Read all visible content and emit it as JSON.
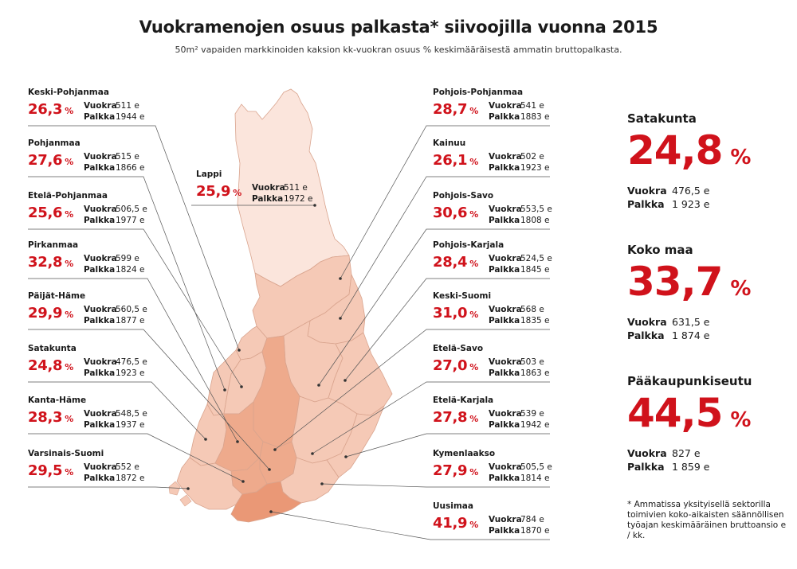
{
  "title": "Vuokramenojen osuus palkasta* siivoojilla vuonna 2015",
  "subtitle": "50m² vapaiden markkinoiden kaksion kk-vuokran osuus % keskimääräisestä ammatin bruttopalkasta.",
  "labels": {
    "rent": "Vuokra",
    "pay": "Palkka",
    "percent_unit": "%",
    "rent_big": "Vuokra",
    "pay_big": "Palkka"
  },
  "left_regions": [
    {
      "name": "Keski-Pohjanmaa",
      "percent": "26,3",
      "rent": "511 e",
      "pay": "1944 e"
    },
    {
      "name": "Pohjanmaa",
      "percent": "27,6",
      "rent": "515 e",
      "pay": "1866 e"
    },
    {
      "name": "Etelä-Pohjanmaa",
      "percent": "25,6",
      "rent": "506,5 e",
      "pay": "1977 e"
    },
    {
      "name": "Pirkanmaa",
      "percent": "32,8",
      "rent": "599 e",
      "pay": "1824 e"
    },
    {
      "name": "Päijät-Häme",
      "percent": "29,9",
      "rent": "560,5 e",
      "pay": "1877 e"
    },
    {
      "name": "Satakunta",
      "percent": "24,8",
      "rent": "476,5 e",
      "pay": "1923 e"
    },
    {
      "name": "Kanta-Häme",
      "percent": "28,3",
      "rent": "548,5 e",
      "pay": "1937 e"
    },
    {
      "name": "Varsinais-Suomi",
      "percent": "29,5",
      "rent": "552 e",
      "pay": "1872 e"
    }
  ],
  "lappi": {
    "name": "Lappi",
    "percent": "25,9",
    "rent": "511 e",
    "pay": "1972 e"
  },
  "right_regions": [
    {
      "name": "Pohjois-Pohjanmaa",
      "percent": "28,7",
      "rent": "541 e",
      "pay": "1883 e"
    },
    {
      "name": "Kainuu",
      "percent": "26,1",
      "rent": "502 e",
      "pay": "1923 e"
    },
    {
      "name": "Pohjois-Savo",
      "percent": "30,6",
      "rent": "553,5 e",
      "pay": "1808 e"
    },
    {
      "name": "Pohjois-Karjala",
      "percent": "28,4",
      "rent": "524,5 e",
      "pay": "1845 e"
    },
    {
      "name": "Keski-Suomi",
      "percent": "31,0",
      "rent": "568 e",
      "pay": "1835 e"
    },
    {
      "name": "Etelä-Savo",
      "percent": "27,0",
      "rent": "503 e",
      "pay": "1863 e"
    },
    {
      "name": "Etelä-Karjala",
      "percent": "27,8",
      "rent": "539 e",
      "pay": "1942 e"
    },
    {
      "name": "Kymenlaakso",
      "percent": "27,9",
      "rent": "505,5 e",
      "pay": "1814 e"
    },
    {
      "name": "Uusimaa",
      "percent": "41,9",
      "rent": "784 e",
      "pay": "1870 e"
    }
  ],
  "highlights": [
    {
      "name": "Satakunta",
      "percent": "24,8",
      "rent": "476,5 e",
      "pay": "1 923 e"
    },
    {
      "name": "Koko maa",
      "percent": "33,7",
      "rent": "631,5 e",
      "pay": "1 874 e"
    },
    {
      "name": "Pääkaupunkiseutu",
      "percent": "44,5",
      "rent": "827 e",
      "pay": "1 859 e"
    }
  ],
  "footnote": "* Ammatissa yksityisellä sektorilla toimivien koko-aikaisten säännöllisen työajan keskimääräinen bruttoansio e / kk.",
  "colors": {
    "accent_red": "#d0121b",
    "map_light": "#fbe5dc",
    "map_mid": "#f5c9b6",
    "map_dark": "#eeaa8c",
    "map_uusimaa": "#ea9876",
    "border": "#d9a48e",
    "leader": "#555555"
  }
}
